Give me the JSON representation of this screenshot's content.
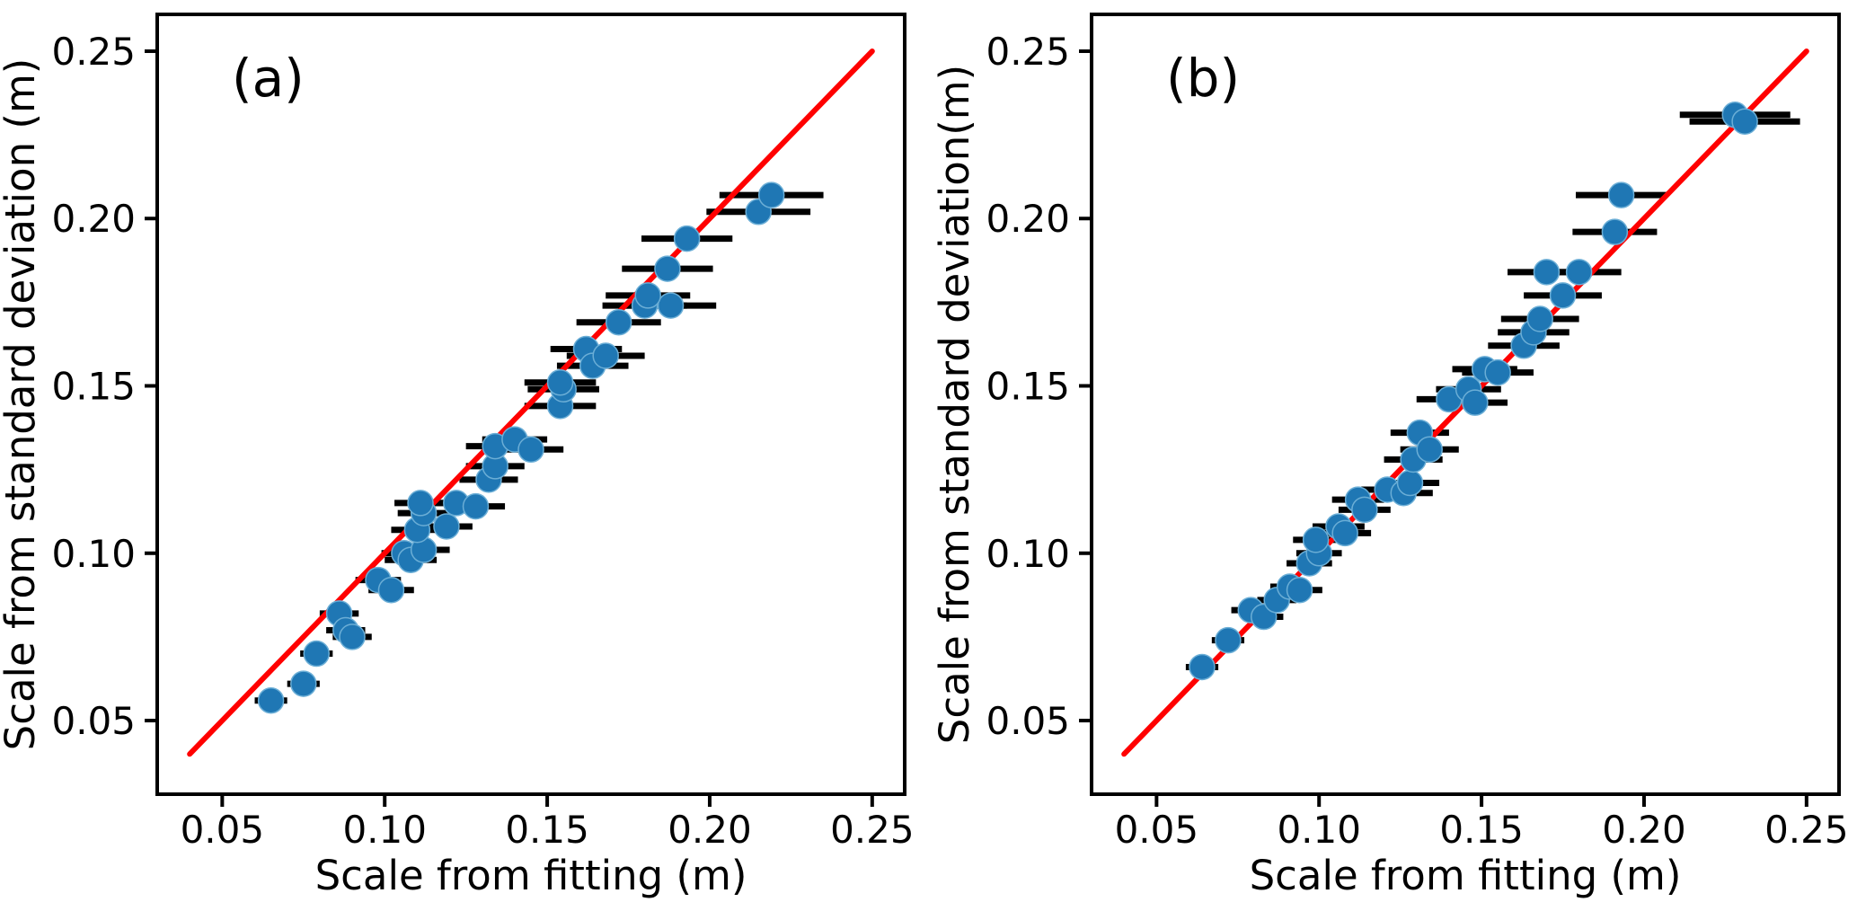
{
  "figure": {
    "kind": "two-panel-scatter-figure",
    "background": "#ffffff"
  },
  "colors": {
    "background": "#ffffff",
    "axes": "#000000",
    "tick_labels": "#000000",
    "error_bars": "#000000",
    "marker": "#1f77b4",
    "marker_edge": "#6baed6",
    "identity_line": "#ff0000"
  },
  "chart_data": [
    {
      "type": "scatter",
      "panel_label": "(a)",
      "xlabel": "Scale from fitting (m)",
      "ylabel": "Scale from standard deviation (m)",
      "xlim": [
        0.03,
        0.26
      ],
      "ylim": [
        0.028,
        0.261
      ],
      "xticks": [
        0.05,
        0.1,
        0.15,
        0.2,
        0.25
      ],
      "yticks": [
        0.05,
        0.1,
        0.15,
        0.2,
        0.25
      ],
      "grid": false,
      "legend": "none",
      "reference_line": {
        "name": "identity-line",
        "color": "#ff0000",
        "x": [
          0.04,
          0.25
        ],
        "y": [
          0.04,
          0.25
        ]
      },
      "series": [
        {
          "name": "scale-comparison-points",
          "marker": "circle",
          "color": "#1f77b4",
          "errorbar_color": "#000000",
          "points_columns": [
            "x",
            "y",
            "xerr"
          ],
          "points": [
            [
              0.065,
              0.056,
              0.005
            ],
            [
              0.075,
              0.061,
              0.005
            ],
            [
              0.079,
              0.07,
              0.005
            ],
            [
              0.086,
              0.082,
              0.006
            ],
            [
              0.088,
              0.077,
              0.006
            ],
            [
              0.09,
              0.075,
              0.006
            ],
            [
              0.098,
              0.092,
              0.007
            ],
            [
              0.102,
              0.089,
              0.007
            ],
            [
              0.106,
              0.1,
              0.007
            ],
            [
              0.108,
              0.098,
              0.008
            ],
            [
              0.112,
              0.101,
              0.008
            ],
            [
              0.11,
              0.107,
              0.008
            ],
            [
              0.112,
              0.112,
              0.008
            ],
            [
              0.111,
              0.115,
              0.008
            ],
            [
              0.119,
              0.108,
              0.008
            ],
            [
              0.122,
              0.115,
              0.009
            ],
            [
              0.128,
              0.114,
              0.009
            ],
            [
              0.132,
              0.122,
              0.009
            ],
            [
              0.134,
              0.126,
              0.009
            ],
            [
              0.134,
              0.132,
              0.009
            ],
            [
              0.14,
              0.134,
              0.01
            ],
            [
              0.145,
              0.131,
              0.01
            ],
            [
              0.154,
              0.144,
              0.011
            ],
            [
              0.155,
              0.149,
              0.011
            ],
            [
              0.154,
              0.151,
              0.011
            ],
            [
              0.162,
              0.161,
              0.011
            ],
            [
              0.164,
              0.156,
              0.011
            ],
            [
              0.168,
              0.159,
              0.012
            ],
            [
              0.172,
              0.169,
              0.013
            ],
            [
              0.18,
              0.174,
              0.013
            ],
            [
              0.188,
              0.174,
              0.014
            ],
            [
              0.181,
              0.177,
              0.013
            ],
            [
              0.187,
              0.185,
              0.014
            ],
            [
              0.193,
              0.194,
              0.014
            ],
            [
              0.215,
              0.202,
              0.016
            ],
            [
              0.219,
              0.207,
              0.016
            ]
          ]
        }
      ]
    },
    {
      "type": "scatter",
      "panel_label": "(b)",
      "xlabel": "Scale from fitting (m)",
      "ylabel": "Scale from standard deviation(m)",
      "xlim": [
        0.03,
        0.26
      ],
      "ylim": [
        0.028,
        0.261
      ],
      "xticks": [
        0.05,
        0.1,
        0.15,
        0.2,
        0.25
      ],
      "yticks": [
        0.05,
        0.1,
        0.15,
        0.2,
        0.25
      ],
      "grid": false,
      "legend": "none",
      "reference_line": {
        "name": "identity-line",
        "color": "#ff0000",
        "x": [
          0.04,
          0.25
        ],
        "y": [
          0.04,
          0.25
        ]
      },
      "series": [
        {
          "name": "scale-comparison-points",
          "marker": "circle",
          "color": "#1f77b4",
          "errorbar_color": "#000000",
          "points_columns": [
            "x",
            "y",
            "xerr"
          ],
          "points": [
            [
              0.064,
              0.066,
              0.005
            ],
            [
              0.072,
              0.074,
              0.005
            ],
            [
              0.079,
              0.083,
              0.006
            ],
            [
              0.083,
              0.081,
              0.006
            ],
            [
              0.087,
              0.086,
              0.006
            ],
            [
              0.091,
              0.09,
              0.006
            ],
            [
              0.094,
              0.089,
              0.007
            ],
            [
              0.097,
              0.097,
              0.007
            ],
            [
              0.1,
              0.1,
              0.007
            ],
            [
              0.099,
              0.104,
              0.007
            ],
            [
              0.106,
              0.108,
              0.008
            ],
            [
              0.108,
              0.106,
              0.008
            ],
            [
              0.112,
              0.116,
              0.008
            ],
            [
              0.114,
              0.113,
              0.008
            ],
            [
              0.121,
              0.119,
              0.008
            ],
            [
              0.126,
              0.118,
              0.009
            ],
            [
              0.128,
              0.121,
              0.009
            ],
            [
              0.129,
              0.128,
              0.009
            ],
            [
              0.131,
              0.136,
              0.009
            ],
            [
              0.134,
              0.131,
              0.009
            ],
            [
              0.14,
              0.146,
              0.01
            ],
            [
              0.146,
              0.149,
              0.01
            ],
            [
              0.148,
              0.145,
              0.01
            ],
            [
              0.151,
              0.155,
              0.01
            ],
            [
              0.155,
              0.154,
              0.011
            ],
            [
              0.163,
              0.162,
              0.011
            ],
            [
              0.166,
              0.166,
              0.011
            ],
            [
              0.168,
              0.17,
              0.012
            ],
            [
              0.175,
              0.177,
              0.012
            ],
            [
              0.17,
              0.184,
              0.012
            ],
            [
              0.18,
              0.184,
              0.013
            ],
            [
              0.191,
              0.196,
              0.013
            ],
            [
              0.193,
              0.207,
              0.014
            ],
            [
              0.228,
              0.231,
              0.017
            ],
            [
              0.231,
              0.229,
              0.017
            ]
          ]
        }
      ]
    }
  ]
}
